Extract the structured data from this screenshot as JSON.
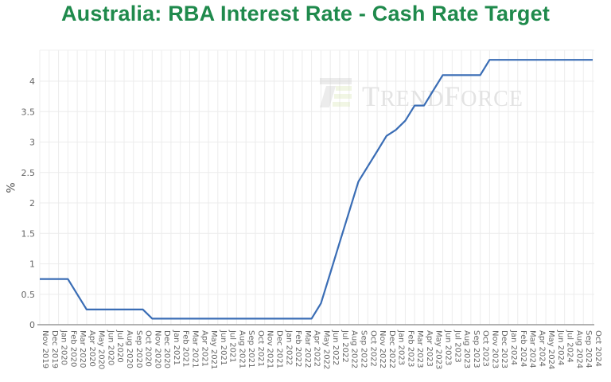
{
  "header": {
    "title": "Australia: RBA Interest Rate - Cash Rate Target"
  },
  "watermark": {
    "text": "TrendForce",
    "logo": "trendforce-logo-icon"
  },
  "colors": {
    "title": "#1f8a4c",
    "line": "#3a6db5",
    "grid": "#ececec",
    "axis": "#999999",
    "tick_text": "#666666"
  },
  "chart_data": {
    "type": "line",
    "title": "Australia: RBA Interest Rate - Cash Rate Target",
    "xlabel": "",
    "ylabel": "%",
    "ylim": [
      0,
      4.6
    ],
    "yticks": [
      0,
      0.5,
      1,
      1.5,
      2,
      2.5,
      3,
      3.5,
      4
    ],
    "grid": true,
    "legend": null,
    "categories": [
      "Nov 2019",
      "Dec 2019",
      "Jan 2020",
      "Feb 2020",
      "Mar 2020",
      "Apr 2020",
      "May 2020",
      "Jun 2020",
      "Jul 2020",
      "Aug 2020",
      "Sep 2020",
      "Oct 2020",
      "Nov 2020",
      "Dec 2020",
      "Jan 2021",
      "Feb 2021",
      "Mar 2021",
      "Apr 2021",
      "May 2021",
      "Jun 2021",
      "Jul 2021",
      "Aug 2021",
      "Sep 2021",
      "Oct 2021",
      "Nov 2021",
      "Dec 2021",
      "Jan 2022",
      "Feb 2022",
      "Mar 2022",
      "Apr 2022",
      "May 2022",
      "Jun 2022",
      "Jul 2022",
      "Aug 2022",
      "Sep 2022",
      "Oct 2022",
      "Nov 2022",
      "Dec 2022",
      "Jan 2023",
      "Feb 2023",
      "Mar 2023",
      "Apr 2023",
      "May 2023",
      "Jun 2023",
      "Jul 2023",
      "Aug 2023",
      "Sep 2023",
      "Oct 2023",
      "Nov 2023",
      "Dec 2023",
      "Jan 2024",
      "Feb 2024",
      "Mar 2024",
      "Apr 2024",
      "May 2024",
      "Jun 2024",
      "Jul 2024",
      "Aug 2024",
      "Sep 2024",
      "Oct 2024"
    ],
    "series": [
      {
        "name": "Cash Rate Target",
        "values": [
          0.75,
          0.75,
          0.75,
          0.75,
          0.5,
          0.25,
          0.25,
          0.25,
          0.25,
          0.25,
          0.25,
          0.25,
          0.1,
          0.1,
          0.1,
          0.1,
          0.1,
          0.1,
          0.1,
          0.1,
          0.1,
          0.1,
          0.1,
          0.1,
          0.1,
          0.1,
          0.1,
          0.1,
          0.1,
          0.1,
          0.35,
          0.85,
          1.35,
          1.85,
          2.35,
          2.6,
          2.85,
          3.1,
          3.2,
          3.35,
          3.6,
          3.6,
          3.85,
          4.1,
          4.1,
          4.1,
          4.1,
          4.1,
          4.35,
          4.35,
          4.35,
          4.35,
          4.35,
          4.35,
          4.35,
          4.35,
          4.35,
          4.35,
          4.35,
          4.35
        ]
      }
    ]
  }
}
